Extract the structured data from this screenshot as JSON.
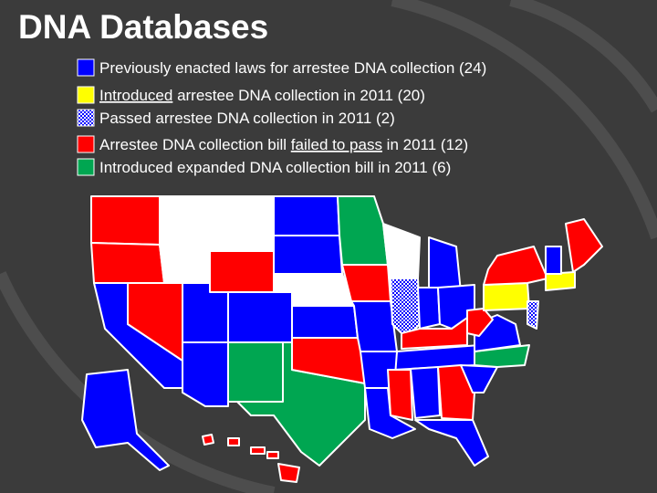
{
  "header": {
    "title": "DNA Databases"
  },
  "legend": {
    "items": [
      {
        "color": "#0000ff",
        "pattern": false,
        "parts": [
          {
            "text": "Previously enacted laws for arrestee DNA collection (24)",
            "underline": false
          }
        ]
      },
      {
        "color": "#ffff00",
        "pattern": false,
        "parts": [
          {
            "text": "Introduced",
            "underline": true
          },
          {
            "text": " arrestee DNA collection in 2011 (20)",
            "underline": false
          }
        ]
      },
      {
        "color": "#0000ff",
        "pattern": true,
        "parts": [
          {
            "text": "Passed arrestee DNA collection in 2011 (2)",
            "underline": false
          }
        ]
      },
      {
        "color": "#ff0000",
        "pattern": false,
        "parts": [
          {
            "text": "Arrestee DNA collection bill ",
            "underline": false
          },
          {
            "text": "failed to pass",
            "underline": true
          },
          {
            "text": " in 2011 (12)",
            "underline": false
          }
        ]
      },
      {
        "color": "#00a651",
        "pattern": false,
        "parts": [
          {
            "text": "Introduced expanded DNA collection bill in 2011 (6)",
            "underline": false
          }
        ]
      }
    ]
  }
}
